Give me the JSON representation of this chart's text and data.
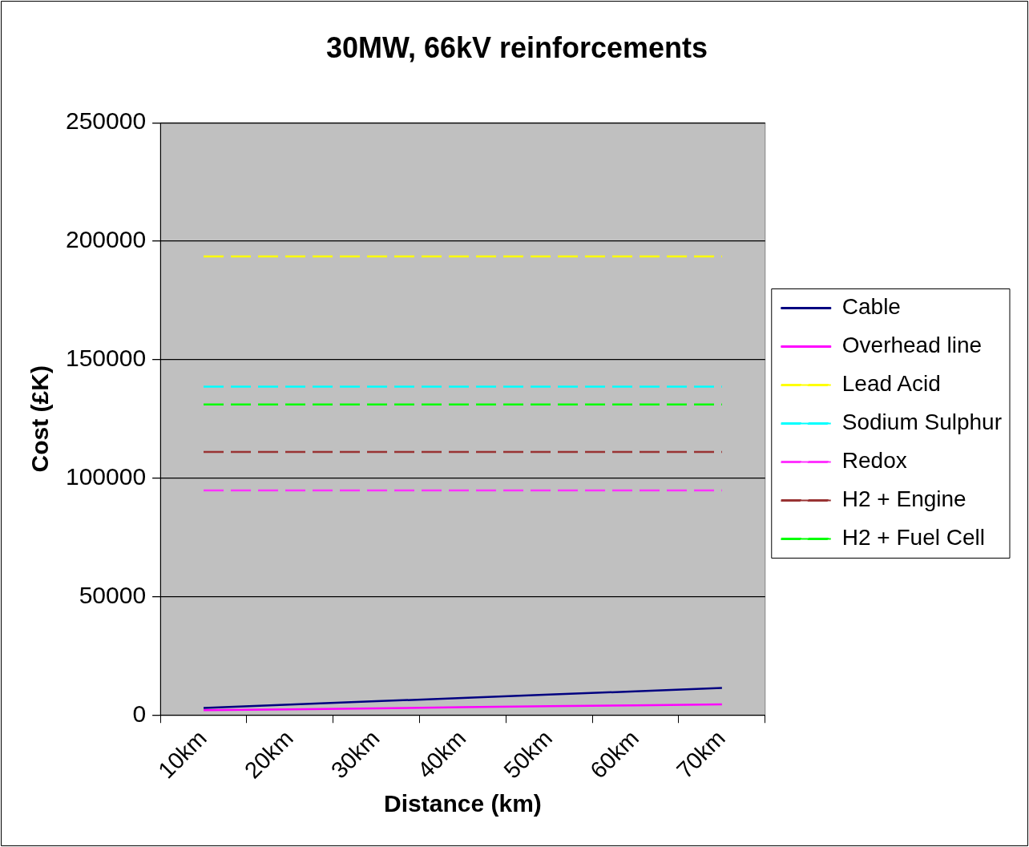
{
  "chart_data": {
    "type": "line",
    "title": "30MW, 66kV reinforcements",
    "xlabel": "Distance (km)",
    "ylabel": "Cost (£K)",
    "categories": [
      "10km",
      "20km",
      "30km",
      "40km",
      "50km",
      "60km",
      "70km"
    ],
    "series": [
      {
        "name": "Cable",
        "color": "#000080",
        "line_style": "solid",
        "values": [
          3000,
          4400,
          5800,
          7200,
          8600,
          10000,
          11400
        ]
      },
      {
        "name": "Overhead line",
        "color": "#ff00ff",
        "line_style": "solid",
        "values": [
          2000,
          2400,
          2800,
          3300,
          3700,
          4100,
          4500
        ]
      },
      {
        "name": "Lead Acid",
        "color": "#ffff00",
        "line_style": "dashed",
        "values": [
          193600,
          193600,
          193600,
          193600,
          193600,
          193600,
          193600
        ]
      },
      {
        "name": "Sodium Sulphur",
        "color": "#00ffff",
        "line_style": "dashed",
        "values": [
          138600,
          138600,
          138600,
          138600,
          138600,
          138600,
          138600
        ]
      },
      {
        "name": "Redox",
        "color": "#ff33ff",
        "line_style": "dashed",
        "values": [
          94800,
          94800,
          94800,
          94800,
          94800,
          94800,
          94800
        ]
      },
      {
        "name": "H2 + Engine",
        "color": "#993333",
        "line_style": "dashed",
        "values": [
          111000,
          111000,
          111000,
          111000,
          111000,
          111000,
          111000
        ]
      },
      {
        "name": "H2 + Fuel Cell",
        "color": "#00ff00",
        "line_style": "dashed",
        "values": [
          131100,
          131100,
          131100,
          131100,
          131100,
          131100,
          131100
        ]
      }
    ],
    "ylim": [
      0,
      250000
    ],
    "yticks": [
      0,
      50000,
      100000,
      150000,
      200000,
      250000
    ],
    "grid": "y",
    "legend": "right",
    "marker": "none"
  }
}
